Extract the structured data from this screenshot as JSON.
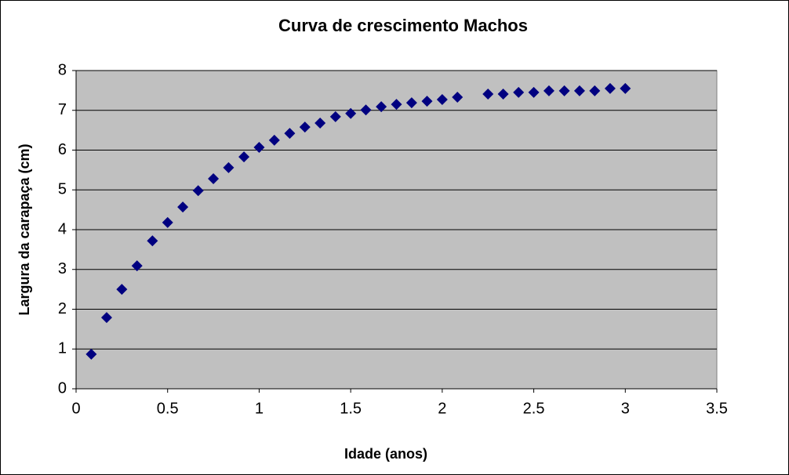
{
  "chart_data": {
    "type": "scatter",
    "title": "Curva de crescimento Machos",
    "x_label": "Idade (anos)",
    "y_label": "Largura da carapaça (cm)",
    "series": [
      {
        "name": "Machos",
        "color": "#000080",
        "x": [
          0.083,
          0.167,
          0.25,
          0.333,
          0.417,
          0.5,
          0.583,
          0.667,
          0.75,
          0.833,
          0.917,
          1.0,
          1.083,
          1.167,
          1.25,
          1.333,
          1.417,
          1.5,
          1.583,
          1.667,
          1.75,
          1.833,
          1.917,
          2.0,
          2.083,
          2.25,
          2.333,
          2.417,
          2.5,
          2.583,
          2.667,
          2.75,
          2.833,
          2.917,
          3.0
        ],
        "values": [
          0.87,
          1.79,
          2.5,
          3.09,
          3.72,
          4.18,
          4.57,
          4.98,
          5.28,
          5.56,
          5.83,
          6.07,
          6.25,
          6.42,
          6.58,
          6.68,
          6.84,
          6.92,
          7.01,
          7.09,
          7.15,
          7.19,
          7.23,
          7.27,
          7.33,
          7.41,
          7.41,
          7.45,
          7.45,
          7.49,
          7.49,
          7.49,
          7.49,
          7.55,
          7.55
        ]
      }
    ],
    "xlim": [
      0,
      3.5
    ],
    "xticks": [
      0,
      0.5,
      1,
      1.5,
      2,
      2.5,
      3,
      3.5
    ],
    "ylim": [
      0,
      8
    ],
    "yticks": [
      0,
      1,
      2,
      3,
      4,
      5,
      6,
      7,
      8
    ],
    "grid": true,
    "plot_background": "#c0c0c0"
  }
}
